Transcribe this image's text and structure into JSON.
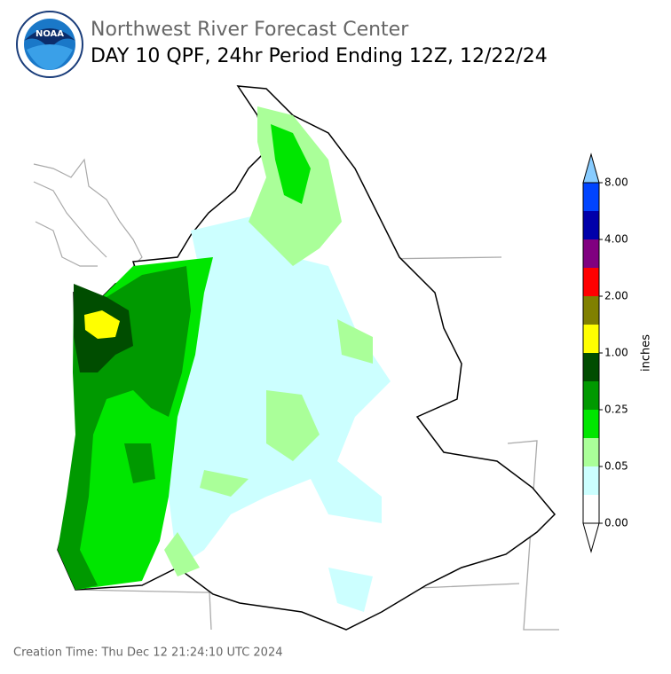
{
  "header": {
    "org": "Northwest River Forecast Center",
    "title": "DAY 10 QPF, 24hr Period Ending 12Z, 12/22/24",
    "logo_text": "NOAA"
  },
  "colorbar": {
    "label": "inches",
    "ticks": [
      {
        "value": 0,
        "label": "0.00"
      },
      {
        "value": 0.05,
        "label": "0.05"
      },
      {
        "value": 0.25,
        "label": "0.25"
      },
      {
        "value": 1,
        "label": "1.00"
      },
      {
        "value": 2,
        "label": "2.00"
      },
      {
        "value": 4,
        "label": "4.00"
      },
      {
        "value": 8,
        "label": "8.00"
      }
    ],
    "colors": [
      "#ffffff",
      "#ccffff",
      "#aaff99",
      "#00e600",
      "#009900",
      "#004d00",
      "#ffff00",
      "#808000",
      "#ff0000",
      "#800080",
      "#0000aa",
      "#0044ff"
    ],
    "under_color": "#ffffff",
    "over_color": "#88ccff"
  },
  "footer": {
    "creation": "Creation Time: Thu Dec 12 21:24:10 UTC 2024"
  }
}
